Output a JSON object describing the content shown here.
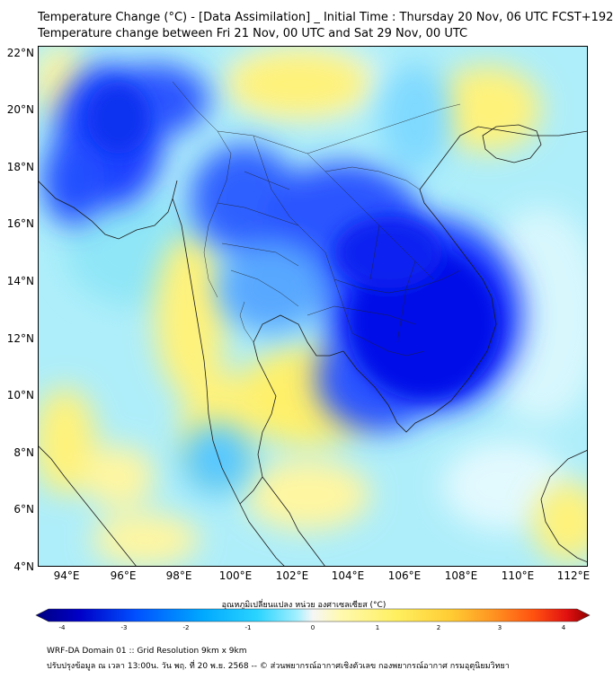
{
  "title_line1": "Temperature Change (°C) - [Data Assimilation] _ Initial Time : Thursday 20 Nov, 06 UTC FCST+192",
  "title_line2": "Temperature change between Fri 21 Nov, 00 UTC and Sat 29 Nov, 00 UTC",
  "lat_labels": [
    "22°N",
    "20°N",
    "18°N",
    "16°N",
    "14°N",
    "12°N",
    "10°N",
    "8°N",
    "6°N",
    "4°N"
  ],
  "lon_labels": [
    "94°E",
    "96°E",
    "98°E",
    "100°E",
    "102°E",
    "104°E",
    "106°E",
    "108°E",
    "110°E",
    "112°E"
  ],
  "colorbar": {
    "label": "อุณหภูมิเปลี่ยนแปลง หน่วย องศาเซลเซียส (°C)",
    "ticks": [
      "-4",
      "-3",
      "-2",
      "-1",
      "0",
      "1",
      "2",
      "3",
      "4"
    ],
    "colors": [
      "#000080",
      "#0000c8",
      "#0050ff",
      "#00a8ff",
      "#2ad4ff",
      "#9fefff",
      "#f6f6f6",
      "#fff9b0",
      "#fff060",
      "#ffcc33",
      "#ff9020",
      "#ff5010",
      "#e01010",
      "#900000"
    ]
  },
  "footer_line1": "WRF-DA Domain 01 :: Grid Resolution 9km x 9km",
  "footer_line2": "ปรับปรุงข้อมูล ณ เวลา 13:00น. วัน พฤ. ที่ 20 พ.ย. 2568 -- © ส่วนพยากรณ์อากาศเชิงตัวเลข กองพยากรณ์อากาศ กรมอุตุนิยมวิทยา"
}
